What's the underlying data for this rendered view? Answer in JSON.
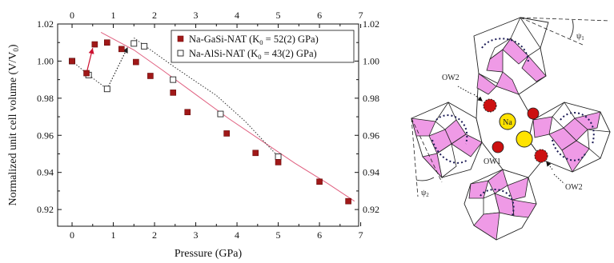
{
  "chart_data": {
    "type": "scatter",
    "xlabel": "Pressure (GPa)",
    "ylabel": "Normalized unit cell volume (V/V",
    "ylabel_sub": "0",
    "ylabel_close": ")",
    "xlim": [
      -0.35,
      6.95
    ],
    "ylim": [
      0.911,
      1.02
    ],
    "x_ticks": [
      0,
      1,
      2,
      3,
      4,
      5,
      6,
      7
    ],
    "y_ticks": [
      0.92,
      0.94,
      0.96,
      0.98,
      1.0,
      1.02
    ],
    "y_tick_labels": [
      "0.92",
      "0.94",
      "0.96",
      "0.98",
      "1.00",
      "1.02"
    ],
    "legend_position": "top-right",
    "series": [
      {
        "name_prefix": "Na-GaSi-NAT (K",
        "name_sub": "0",
        "name_suffix": " = 52(2) GPa)",
        "marker": "filled-square",
        "color": "#a01818",
        "x": [
          0.0,
          0.35,
          0.55,
          0.85,
          1.2,
          1.55,
          1.9,
          2.45,
          2.8,
          3.75,
          4.45,
          5.0,
          6.0,
          6.7
        ],
        "y": [
          1.0,
          0.9935,
          1.009,
          1.01,
          1.0065,
          0.9995,
          0.992,
          0.983,
          0.9725,
          0.961,
          0.9505,
          0.9455,
          0.935,
          0.9245
        ],
        "fit": {
          "x": [
            0.7,
            1.5,
            2.2,
            3.0,
            3.8,
            4.6,
            5.4,
            6.2,
            6.85
          ],
          "y": [
            1.0155,
            1.006,
            0.995,
            0.982,
            0.969,
            0.957,
            0.945,
            0.934,
            0.9245
          ]
        }
      },
      {
        "name_prefix": "Na-AlSi-NAT (K",
        "name_sub": "0",
        "name_suffix": " = 43(2) GPa)",
        "marker": "open-square",
        "color": "#222222",
        "x": [
          0.0,
          0.4,
          0.85,
          1.5,
          1.75,
          2.45,
          3.6,
          5.0
        ],
        "y": [
          1.0,
          0.9925,
          0.985,
          1.0095,
          1.008,
          0.99,
          0.9715,
          0.9485
        ],
        "fit": {
          "x": [
            0.0,
            0.4,
            0.85
          ],
          "y": [
            1.0,
            0.9925,
            0.985
          ]
        },
        "fit2": {
          "x": [
            1.5,
            2.5,
            3.5,
            4.2,
            5.0
          ],
          "y": [
            1.0125,
            0.9965,
            0.9815,
            0.9675,
            0.9485
          ]
        }
      }
    ],
    "annotations": [
      {
        "type": "arrow",
        "color": "#cc1030",
        "from": [
          0.35,
          0.9935
        ],
        "to": [
          0.5,
          1.007
        ]
      },
      {
        "type": "arrow",
        "color": "#222222",
        "from": [
          0.85,
          0.985
        ],
        "to": [
          1.35,
          1.0075
        ]
      }
    ]
  },
  "structure": {
    "labels": {
      "ow2_top": "OW2",
      "ow1": "OW1",
      "ow2_bottom": "OW2",
      "na": "Na",
      "psi1": "ψ",
      "psi1_sub": "1",
      "psi2": "ψ",
      "psi2_sub": "2"
    },
    "colors": {
      "tetra_fill": "#ef9ae6",
      "tetra_stroke": "#222222",
      "na_fill": "#ffe300",
      "ow_fill": "#cc1010",
      "ow_dashed_fill": "#cc1010"
    }
  }
}
